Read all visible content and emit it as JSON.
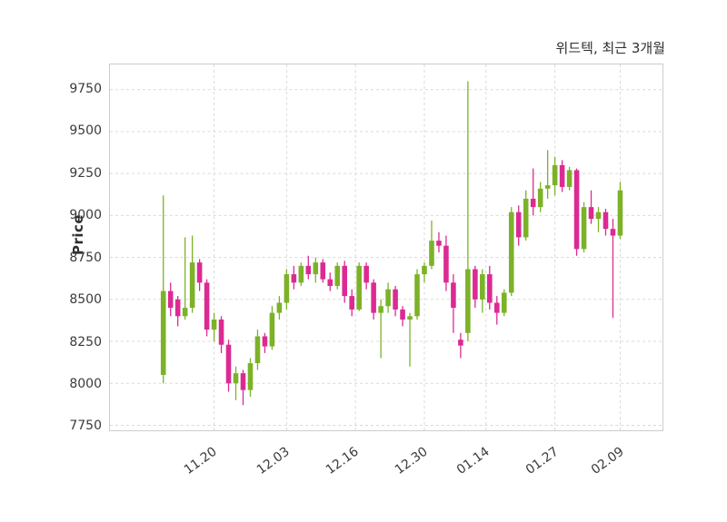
{
  "chart_data": {
    "type": "candlestick",
    "title": "위드텍, 최근 3개월",
    "ylabel": "Price",
    "ylim": [
      7720,
      9900
    ],
    "y_ticks": [
      7750,
      8000,
      8250,
      8500,
      8750,
      9000,
      9250,
      9500,
      9750
    ],
    "x_ticks": [
      {
        "label": "11.20",
        "index": 7
      },
      {
        "label": "12.03",
        "index": 17
      },
      {
        "label": "12.16",
        "index": 26.5
      },
      {
        "label": "12.30",
        "index": 36
      },
      {
        "label": "01.14",
        "index": 44.5
      },
      {
        "label": "01.27",
        "index": 54
      },
      {
        "label": "02.09",
        "index": 63
      }
    ],
    "grid": true,
    "legend": false,
    "colors": {
      "up": "#7cb228",
      "down": "#dc2a93",
      "grid": "#d9d9d9",
      "spine": "#cccccc",
      "tick_text": "#3b3b3b",
      "title_text": "#2e2e2e",
      "background": "#ffffff"
    },
    "candles": [
      [
        8050,
        9120,
        8000,
        8550
      ],
      [
        8550,
        8600,
        8400,
        8450
      ],
      [
        8500,
        8520,
        8340,
        8400
      ],
      [
        8400,
        8870,
        8380,
        8450
      ],
      [
        8450,
        8880,
        8420,
        8720
      ],
      [
        8720,
        8740,
        8550,
        8600
      ],
      [
        8600,
        8620,
        8280,
        8320
      ],
      [
        8320,
        8420,
        8250,
        8380
      ],
      [
        8380,
        8400,
        8180,
        8230
      ],
      [
        8230,
        8260,
        7950,
        8000
      ],
      [
        8000,
        8100,
        7900,
        8060
      ],
      [
        8060,
        8080,
        7870,
        7960
      ],
      [
        7960,
        8150,
        7920,
        8120
      ],
      [
        8120,
        8320,
        8080,
        8280
      ],
      [
        8280,
        8300,
        8180,
        8220
      ],
      [
        8220,
        8460,
        8200,
        8420
      ],
      [
        8420,
        8520,
        8380,
        8480
      ],
      [
        8480,
        8680,
        8440,
        8650
      ],
      [
        8650,
        8700,
        8560,
        8600
      ],
      [
        8600,
        8720,
        8580,
        8700
      ],
      [
        8700,
        8760,
        8620,
        8650
      ],
      [
        8650,
        8750,
        8600,
        8720
      ],
      [
        8720,
        8740,
        8600,
        8620
      ],
      [
        8620,
        8660,
        8550,
        8580
      ],
      [
        8580,
        8720,
        8560,
        8700
      ],
      [
        8700,
        8730,
        8480,
        8520
      ],
      [
        8520,
        8560,
        8400,
        8440
      ],
      [
        8440,
        8720,
        8430,
        8700
      ],
      [
        8700,
        8720,
        8560,
        8600
      ],
      [
        8600,
        8620,
        8380,
        8420
      ],
      [
        8420,
        8500,
        8150,
        8460
      ],
      [
        8460,
        8600,
        8420,
        8560
      ],
      [
        8560,
        8580,
        8400,
        8440
      ],
      [
        8440,
        8460,
        8340,
        8380
      ],
      [
        8380,
        8420,
        8100,
        8400
      ],
      [
        8400,
        8680,
        8380,
        8650
      ],
      [
        8650,
        8720,
        8600,
        8700
      ],
      [
        8700,
        8970,
        8680,
        8850
      ],
      [
        8850,
        8900,
        8780,
        8820
      ],
      [
        8820,
        8880,
        8550,
        8600
      ],
      [
        8600,
        8650,
        8300,
        8450
      ],
      [
        8260,
        8300,
        8150,
        8225
      ],
      [
        8300,
        9800,
        8250,
        8680
      ],
      [
        8680,
        8700,
        8450,
        8500
      ],
      [
        8500,
        8680,
        8420,
        8650
      ],
      [
        8650,
        8700,
        8440,
        8480
      ],
      [
        8480,
        8520,
        8350,
        8420
      ],
      [
        8420,
        8560,
        8400,
        8540
      ],
      [
        8540,
        9050,
        8520,
        9020
      ],
      [
        9020,
        9060,
        8820,
        8870
      ],
      [
        8870,
        9150,
        8850,
        9100
      ],
      [
        9100,
        9280,
        9000,
        9050
      ],
      [
        9050,
        9200,
        9020,
        9160
      ],
      [
        9160,
        9390,
        9100,
        9180
      ],
      [
        9180,
        9350,
        9120,
        9300
      ],
      [
        9300,
        9330,
        9140,
        9170
      ],
      [
        9170,
        9290,
        9150,
        9270
      ],
      [
        9270,
        9280,
        8760,
        8800
      ],
      [
        8800,
        9080,
        8780,
        9050
      ],
      [
        9050,
        9150,
        8950,
        8980
      ],
      [
        8980,
        9050,
        8900,
        9020
      ],
      [
        9020,
        9040,
        8880,
        8920
      ],
      [
        8920,
        8980,
        8390,
        8880
      ],
      [
        8880,
        9200,
        8860,
        9150
      ]
    ]
  }
}
